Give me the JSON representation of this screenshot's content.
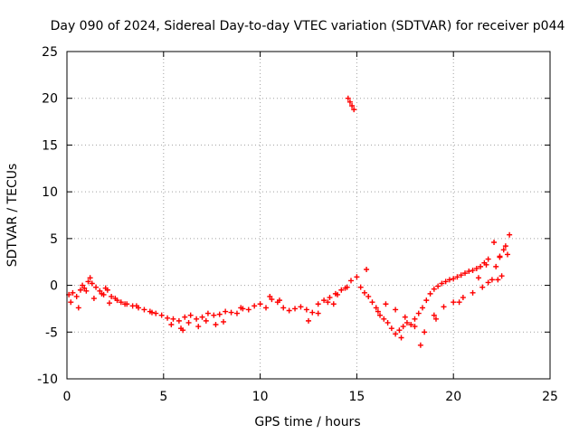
{
  "chart_data": {
    "type": "scatter",
    "title": "Day 090 of 2024, Sidereal Day-to-day VTEC variation (SDTVAR) for receiver p044",
    "xlabel": "GPS time / hours",
    "ylabel": "SDTVAR / TECUs",
    "xlim": [
      0,
      25
    ],
    "ylim": [
      -10,
      25
    ],
    "xticks": [
      0,
      5,
      10,
      15,
      20,
      25
    ],
    "yticks": [
      -10,
      -5,
      0,
      5,
      10,
      15,
      20,
      25
    ],
    "grid": true,
    "marker": "plus",
    "color": "#ff0000",
    "series": [
      {
        "name": "SDTVAR",
        "x": [
          0.1,
          0.3,
          0.5,
          0.7,
          0.9,
          1.1,
          1.3,
          1.5,
          1.7,
          1.9,
          2.1,
          2.3,
          2.5,
          2.8,
          3.1,
          3.4,
          3.7,
          4.0,
          4.3,
          4.6,
          4.9,
          5.2,
          5.5,
          5.8,
          6.1,
          6.4,
          6.7,
          7.0,
          7.3,
          7.6,
          7.9,
          8.2,
          8.5,
          8.8,
          9.1,
          9.4,
          9.7,
          10.0,
          10.3,
          10.6,
          10.9,
          11.2,
          11.5,
          11.8,
          12.1,
          12.4,
          12.7,
          13.0,
          13.3,
          13.6,
          13.9,
          14.2,
          14.5,
          14.7,
          14.55,
          14.65,
          14.75,
          14.85,
          15.0,
          15.2,
          15.4,
          15.6,
          15.8,
          16.0,
          16.2,
          16.4,
          16.6,
          16.8,
          17.0,
          17.2,
          17.4,
          17.6,
          17.8,
          18.0,
          18.2,
          18.4,
          18.6,
          18.8,
          19.0,
          19.2,
          19.4,
          19.6,
          19.8,
          20.0,
          20.2,
          20.4,
          20.6,
          20.8,
          21.0,
          21.2,
          21.4,
          21.6,
          21.8,
          22.0,
          22.2,
          22.4,
          22.6,
          22.8,
          0.2,
          0.6,
          1.0,
          1.4,
          1.8,
          2.2,
          2.6,
          3.0,
          5.4,
          5.9,
          6.3,
          6.8,
          7.2,
          7.7,
          8.1,
          12.5,
          13.0,
          13.5,
          14.0,
          14.4,
          16.5,
          17.0,
          17.5,
          18.0,
          18.5,
          19.0,
          19.5,
          20.0,
          20.5,
          21.0,
          21.5,
          21.8,
          22.3,
          22.5,
          22.7,
          22.9,
          0.8,
          1.2,
          2.0,
          3.6,
          4.4,
          6.0,
          9.0,
          10.5,
          11.0,
          13.8,
          15.5,
          16.1,
          17.3,
          18.3,
          19.1,
          20.3,
          21.3,
          21.7,
          22.1,
          22.4
        ],
        "y": [
          -1.0,
          -0.8,
          -1.2,
          -0.5,
          -0.3,
          0.4,
          0.2,
          -0.2,
          -0.6,
          -1.0,
          -0.5,
          -1.2,
          -1.4,
          -1.8,
          -2.0,
          -2.2,
          -2.4,
          -2.6,
          -2.8,
          -3.0,
          -3.2,
          -3.5,
          -3.6,
          -3.8,
          -3.4,
          -3.2,
          -3.6,
          -3.4,
          -3.0,
          -3.2,
          -3.1,
          -2.8,
          -2.9,
          -3.0,
          -2.5,
          -2.6,
          -2.2,
          -2.0,
          -2.4,
          -1.5,
          -1.8,
          -2.4,
          -2.7,
          -2.5,
          -2.3,
          -2.6,
          -2.9,
          -2.0,
          -1.6,
          -1.3,
          -0.9,
          -0.5,
          -0.2,
          0.5,
          20.0,
          19.6,
          19.2,
          18.8,
          0.9,
          -0.2,
          -0.8,
          -1.2,
          -1.8,
          -2.4,
          -3.2,
          -3.6,
          -4.0,
          -4.6,
          -5.2,
          -4.8,
          -4.4,
          -4.0,
          -4.2,
          -3.6,
          -3.0,
          -2.4,
          -1.6,
          -0.9,
          -0.4,
          -0.1,
          0.2,
          0.4,
          0.6,
          0.7,
          0.9,
          1.1,
          1.3,
          1.5,
          1.6,
          1.8,
          2.0,
          2.4,
          2.8,
          0.6,
          2.0,
          3.0,
          3.8,
          3.3,
          -1.8,
          -2.4,
          -0.6,
          -1.4,
          -0.9,
          -1.9,
          -1.6,
          -2.0,
          -4.2,
          -4.6,
          -4.0,
          -4.4,
          -3.8,
          -4.2,
          -3.9,
          -3.8,
          -3.0,
          -1.8,
          -1.0,
          -0.3,
          -2.0,
          -2.6,
          -3.4,
          -4.4,
          -5.0,
          -3.2,
          -2.3,
          -1.8,
          -1.3,
          -0.8,
          -0.2,
          0.3,
          0.6,
          1.0,
          4.2,
          5.4,
          0.0,
          0.8,
          -0.3,
          -2.2,
          -2.9,
          -4.8,
          -2.4,
          -1.2,
          -1.6,
          -2.0,
          1.7,
          -2.8,
          -5.6,
          -6.4,
          -3.6,
          -1.8,
          0.8,
          2.2,
          4.6,
          3.1
        ]
      }
    ]
  }
}
